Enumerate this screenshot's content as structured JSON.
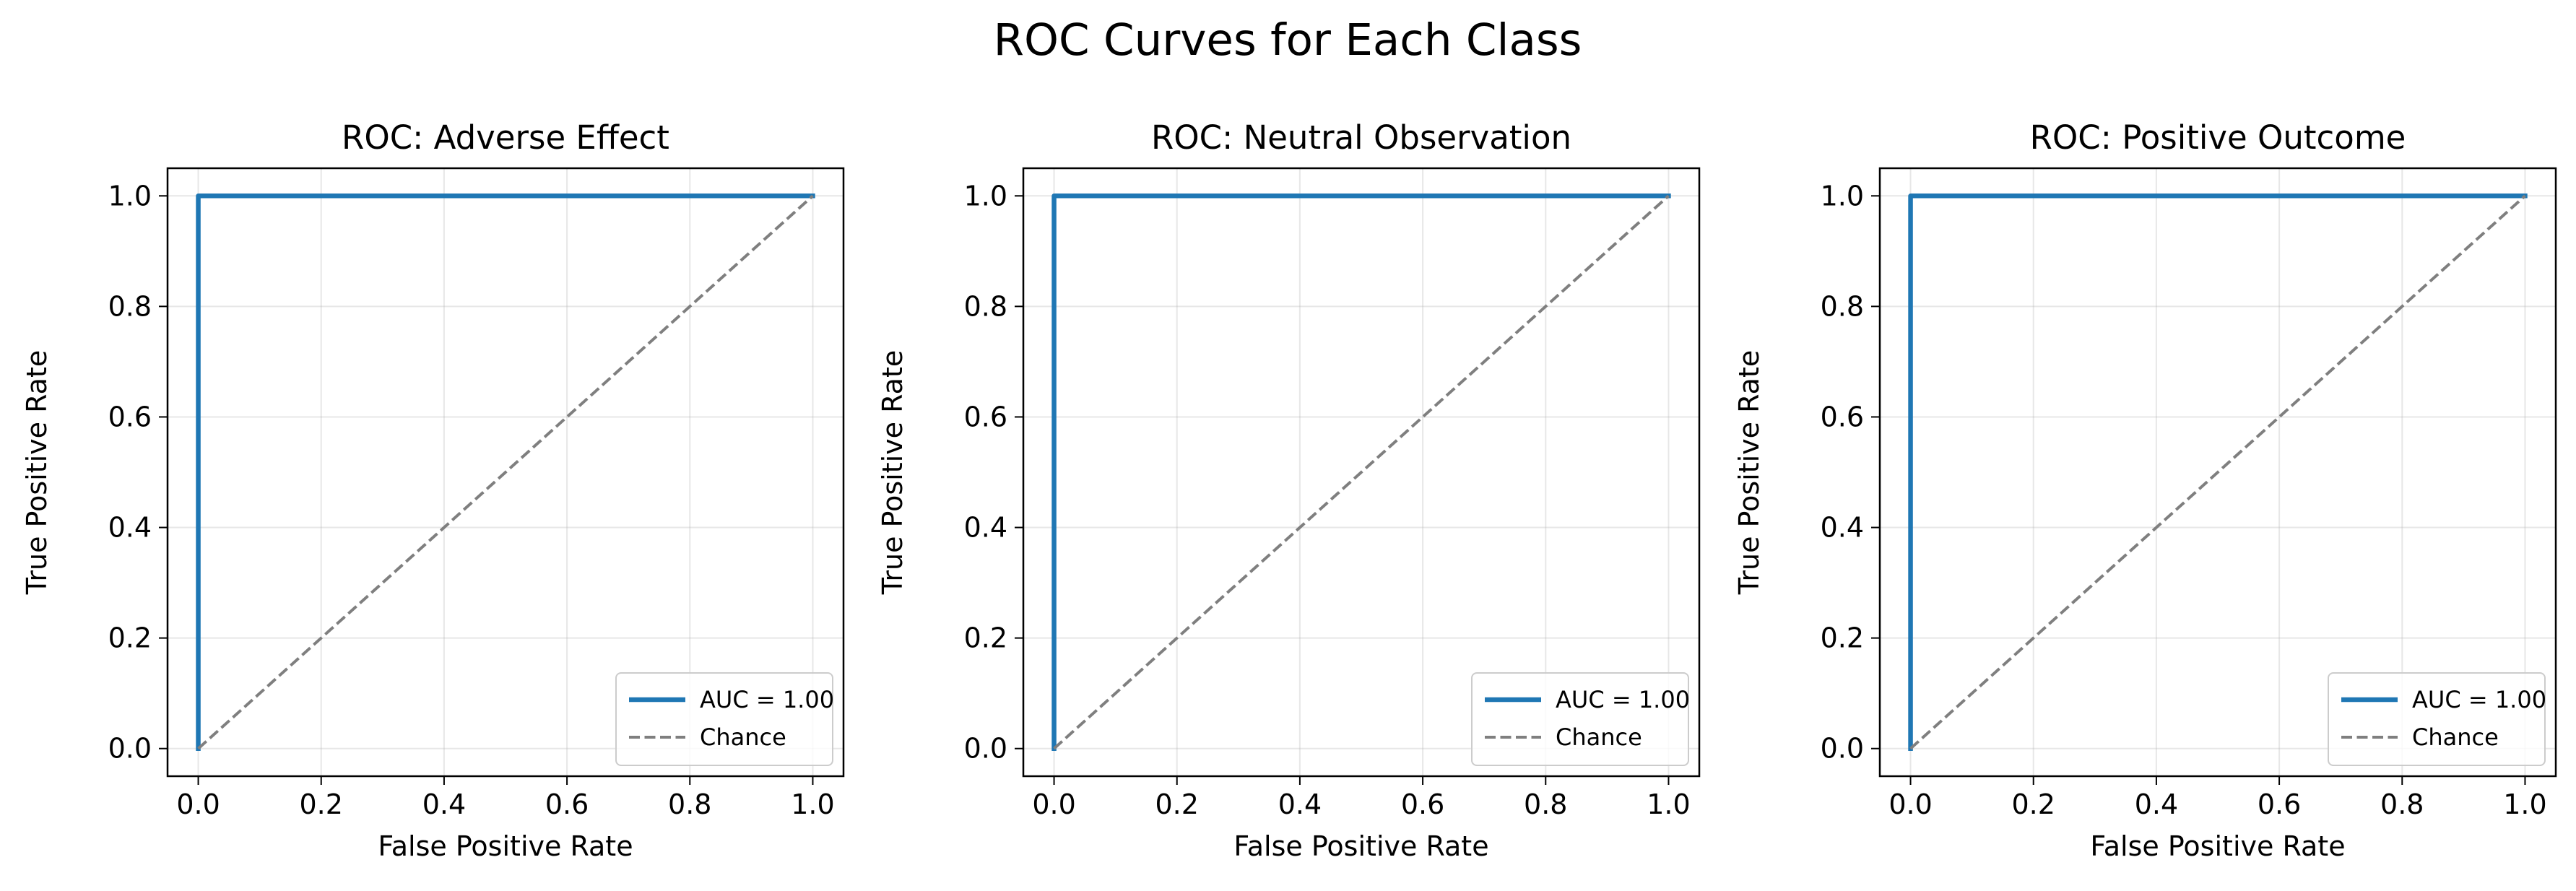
{
  "figure": {
    "suptitle": "ROC Curves for Each Class"
  },
  "chart_data": [
    {
      "type": "line",
      "title": "ROC: Adverse Effect",
      "xlabel": "False Positive Rate",
      "ylabel": "True Positive Rate",
      "xlim": [
        -0.05,
        1.05
      ],
      "ylim": [
        -0.05,
        1.05
      ],
      "xticks": [
        "0.0",
        "0.2",
        "0.4",
        "0.6",
        "0.8",
        "1.0"
      ],
      "yticks": [
        "0.0",
        "0.2",
        "0.4",
        "0.6",
        "0.8",
        "1.0"
      ],
      "grid": true,
      "legend_position": "lower-right",
      "series": [
        {
          "name": "AUC = 1.00",
          "x": [
            0.0,
            0.0,
            1.0
          ],
          "y": [
            0.0,
            1.0,
            1.0
          ],
          "color": "#1f77b4",
          "style": "solid"
        },
        {
          "name": "Chance",
          "x": [
            0.0,
            1.0
          ],
          "y": [
            0.0,
            1.0
          ],
          "color": "#7f7f7f",
          "style": "dashed"
        }
      ]
    },
    {
      "type": "line",
      "title": "ROC: Neutral Observation",
      "xlabel": "False Positive Rate",
      "ylabel": "True Positive Rate",
      "xlim": [
        -0.05,
        1.05
      ],
      "ylim": [
        -0.05,
        1.05
      ],
      "xticks": [
        "0.0",
        "0.2",
        "0.4",
        "0.6",
        "0.8",
        "1.0"
      ],
      "yticks": [
        "0.0",
        "0.2",
        "0.4",
        "0.6",
        "0.8",
        "1.0"
      ],
      "grid": true,
      "legend_position": "lower-right",
      "series": [
        {
          "name": "AUC = 1.00",
          "x": [
            0.0,
            0.0,
            1.0
          ],
          "y": [
            0.0,
            1.0,
            1.0
          ],
          "color": "#1f77b4",
          "style": "solid"
        },
        {
          "name": "Chance",
          "x": [
            0.0,
            1.0
          ],
          "y": [
            0.0,
            1.0
          ],
          "color": "#7f7f7f",
          "style": "dashed"
        }
      ]
    },
    {
      "type": "line",
      "title": "ROC: Positive Outcome",
      "xlabel": "False Positive Rate",
      "ylabel": "True Positive Rate",
      "xlim": [
        -0.05,
        1.05
      ],
      "ylim": [
        -0.05,
        1.05
      ],
      "xticks": [
        "0.0",
        "0.2",
        "0.4",
        "0.6",
        "0.8",
        "1.0"
      ],
      "yticks": [
        "0.0",
        "0.2",
        "0.4",
        "0.6",
        "0.8",
        "1.0"
      ],
      "grid": true,
      "legend_position": "lower-right",
      "series": [
        {
          "name": "AUC = 1.00",
          "x": [
            0.0,
            0.0,
            1.0
          ],
          "y": [
            0.0,
            1.0,
            1.0
          ],
          "color": "#1f77b4",
          "style": "solid"
        },
        {
          "name": "Chance",
          "x": [
            0.0,
            1.0
          ],
          "y": [
            0.0,
            1.0
          ],
          "color": "#7f7f7f",
          "style": "dashed"
        }
      ]
    }
  ]
}
